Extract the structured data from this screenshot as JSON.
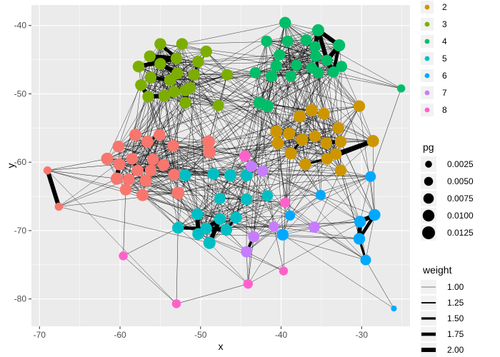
{
  "chart_data": {
    "type": "scatter",
    "subtype": "network-graph",
    "xlabel": "x",
    "ylabel": "y",
    "xlim": [
      -71,
      -24
    ],
    "ylim": [
      -84,
      -37
    ],
    "x_ticks": [
      -70,
      -60,
      -50,
      -40,
      -30
    ],
    "x_tick_labels": [
      "-70",
      "-60",
      "-50",
      "-40",
      "-30"
    ],
    "y_ticks": [
      -40,
      -50,
      -60,
      -70,
      -80
    ],
    "y_tick_labels": [
      "-40",
      "-50",
      "-60",
      "-70",
      "-80"
    ],
    "grid": true,
    "legend_position": "right",
    "color_legend": {
      "items": [
        {
          "label": "2",
          "color": "#CD9600"
        },
        {
          "label": "3",
          "color": "#7CAE00"
        },
        {
          "label": "4",
          "color": "#00BE67"
        },
        {
          "label": "5",
          "color": "#00BFC4"
        },
        {
          "label": "6",
          "color": "#00A9FF"
        },
        {
          "label": "7",
          "color": "#C77CFF"
        },
        {
          "label": "8",
          "color": "#FF61CC"
        }
      ]
    },
    "size_legend": {
      "title": "pg",
      "items": [
        {
          "label": "0.0025",
          "value": 0.0025
        },
        {
          "label": "0.0050",
          "value": 0.005
        },
        {
          "label": "0.0075",
          "value": 0.0075
        },
        {
          "label": "0.0100",
          "value": 0.01
        },
        {
          "label": "0.0125",
          "value": 0.0125
        }
      ]
    },
    "weight_legend": {
      "title": "weight",
      "items": [
        {
          "label": "1.00",
          "value": 1.0
        },
        {
          "label": "1.25",
          "value": 1.25
        },
        {
          "label": "1.50",
          "value": 1.5
        },
        {
          "label": "1.75",
          "value": 1.75
        },
        {
          "label": "2.00",
          "value": 2.0
        }
      ]
    },
    "groups": {
      "1": "#F8766D",
      "2": "#CD9600",
      "3": "#7CAE00",
      "4": "#00BE67",
      "5": "#00BFC4",
      "6": "#00A9FF",
      "7": "#C77CFF",
      "8": "#FF61CC"
    },
    "nodes": [
      {
        "id": "a1",
        "g": "1",
        "x": -69,
        "y": -61.2,
        "pg": 0.004
      },
      {
        "id": "a2",
        "g": "1",
        "x": -67.6,
        "y": -66.5,
        "pg": 0.004
      },
      {
        "id": "a3",
        "g": "1",
        "x": -61.6,
        "y": -59.5,
        "pg": 0.011
      },
      {
        "id": "a4",
        "g": "1",
        "x": -60.2,
        "y": -57.7,
        "pg": 0.01
      },
      {
        "id": "a5",
        "g": "1",
        "x": -58.1,
        "y": -56.0,
        "pg": 0.011
      },
      {
        "id": "a6",
        "g": "1",
        "x": -56.6,
        "y": -57.0,
        "pg": 0.011
      },
      {
        "id": "a7",
        "g": "1",
        "x": -55.1,
        "y": -56.0,
        "pg": 0.01
      },
      {
        "id": "a8",
        "g": "1",
        "x": -53.4,
        "y": -57.6,
        "pg": 0.01
      },
      {
        "id": "a9",
        "g": "1",
        "x": -58.5,
        "y": -59.5,
        "pg": 0.01
      },
      {
        "id": "a10",
        "g": "1",
        "x": -55.9,
        "y": -59.6,
        "pg": 0.01
      },
      {
        "id": "a11",
        "g": "1",
        "x": -54.6,
        "y": -60.4,
        "pg": 0.01
      },
      {
        "id": "a12",
        "g": "1",
        "x": -60.1,
        "y": -60.3,
        "pg": 0.011
      },
      {
        "id": "a13",
        "g": "1",
        "x": -57.8,
        "y": -61.2,
        "pg": 0.01
      },
      {
        "id": "a14",
        "g": "1",
        "x": -56.2,
        "y": -61.2,
        "pg": 0.01
      },
      {
        "id": "a15",
        "g": "1",
        "x": -60.4,
        "y": -62.4,
        "pg": 0.011
      },
      {
        "id": "a16",
        "g": "1",
        "x": -58.9,
        "y": -62.5,
        "pg": 0.01
      },
      {
        "id": "a17",
        "g": "1",
        "x": -56.8,
        "y": -62.7,
        "pg": 0.011
      },
      {
        "id": "a18",
        "g": "1",
        "x": -53.3,
        "y": -61.8,
        "pg": 0.01
      },
      {
        "id": "a19",
        "g": "1",
        "x": -59.3,
        "y": -64.0,
        "pg": 0.01
      },
      {
        "id": "a20",
        "g": "1",
        "x": -57.2,
        "y": -64.8,
        "pg": 0.011
      },
      {
        "id": "a21",
        "g": "1",
        "x": -52.8,
        "y": -64.5,
        "pg": 0.012
      },
      {
        "id": "a22",
        "g": "1",
        "x": -49.0,
        "y": -57.0,
        "pg": 0.012
      },
      {
        "id": "a23",
        "g": "1",
        "x": -48.9,
        "y": -58.5,
        "pg": 0.012
      },
      {
        "id": "b1",
        "g": "2",
        "x": -40.6,
        "y": -55.5,
        "pg": 0.011
      },
      {
        "id": "b2",
        "g": "2",
        "x": -39.0,
        "y": -55.8,
        "pg": 0.011
      },
      {
        "id": "b3",
        "g": "2",
        "x": -37.7,
        "y": -53.3,
        "pg": 0.011
      },
      {
        "id": "b4",
        "g": "2",
        "x": -36.2,
        "y": -52.4,
        "pg": 0.011
      },
      {
        "id": "b5",
        "g": "2",
        "x": -34.7,
        "y": -52.9,
        "pg": 0.01
      },
      {
        "id": "b6",
        "g": "2",
        "x": -32.9,
        "y": -55.0,
        "pg": 0.01
      },
      {
        "id": "b7",
        "g": "2",
        "x": -30.3,
        "y": -51.8,
        "pg": 0.01
      },
      {
        "id": "b8",
        "g": "2",
        "x": -40.4,
        "y": -57.2,
        "pg": 0.011
      },
      {
        "id": "b9",
        "g": "2",
        "x": -37.4,
        "y": -56.7,
        "pg": 0.011
      },
      {
        "id": "b10",
        "g": "2",
        "x": -35.8,
        "y": -56.2,
        "pg": 0.01
      },
      {
        "id": "b11",
        "g": "2",
        "x": -34.4,
        "y": -57.2,
        "pg": 0.01
      },
      {
        "id": "b12",
        "g": "2",
        "x": -32.6,
        "y": -57.0,
        "pg": 0.01
      },
      {
        "id": "b13",
        "g": "2",
        "x": -28.6,
        "y": -56.9,
        "pg": 0.011
      },
      {
        "id": "b14",
        "g": "2",
        "x": -38.8,
        "y": -58.7,
        "pg": 0.011
      },
      {
        "id": "b15",
        "g": "2",
        "x": -34.3,
        "y": -59.5,
        "pg": 0.01
      },
      {
        "id": "b16",
        "g": "2",
        "x": -33.2,
        "y": -58.8,
        "pg": 0.01
      },
      {
        "id": "b17",
        "g": "2",
        "x": -37.0,
        "y": -60.3,
        "pg": 0.01
      },
      {
        "id": "b18",
        "g": "2",
        "x": -32.6,
        "y": -61.2,
        "pg": 0.01
      },
      {
        "id": "c1",
        "g": "3",
        "x": -55.0,
        "y": -42.7,
        "pg": 0.01
      },
      {
        "id": "c2",
        "g": "3",
        "x": -52.3,
        "y": -42.7,
        "pg": 0.01
      },
      {
        "id": "c3",
        "g": "3",
        "x": -56.3,
        "y": -44.5,
        "pg": 0.01
      },
      {
        "id": "c4",
        "g": "3",
        "x": -53.0,
        "y": -44.8,
        "pg": 0.01
      },
      {
        "id": "c5",
        "g": "3",
        "x": -49.3,
        "y": -43.8,
        "pg": 0.01
      },
      {
        "id": "c6",
        "g": "3",
        "x": -57.7,
        "y": -46.0,
        "pg": 0.01
      },
      {
        "id": "c7",
        "g": "3",
        "x": -55.0,
        "y": -45.6,
        "pg": 0.01
      },
      {
        "id": "c8",
        "g": "3",
        "x": -50.3,
        "y": -45.3,
        "pg": 0.01
      },
      {
        "id": "c9",
        "g": "3",
        "x": -52.9,
        "y": -47.0,
        "pg": 0.01
      },
      {
        "id": "c10",
        "g": "3",
        "x": -50.8,
        "y": -47.2,
        "pg": 0.01
      },
      {
        "id": "c11",
        "g": "3",
        "x": -46.7,
        "y": -47.2,
        "pg": 0.009
      },
      {
        "id": "c12",
        "g": "3",
        "x": -56.2,
        "y": -47.6,
        "pg": 0.01
      },
      {
        "id": "c13",
        "g": "3",
        "x": -53.8,
        "y": -48.0,
        "pg": 0.01
      },
      {
        "id": "c14",
        "g": "3",
        "x": -57.4,
        "y": -48.7,
        "pg": 0.01
      },
      {
        "id": "c15",
        "g": "3",
        "x": -53.3,
        "y": -49.7,
        "pg": 0.01
      },
      {
        "id": "c16",
        "g": "3",
        "x": -51.9,
        "y": -49.5,
        "pg": 0.01
      },
      {
        "id": "c17",
        "g": "3",
        "x": -51.3,
        "y": -49.1,
        "pg": 0.009
      },
      {
        "id": "c18",
        "g": "3",
        "x": -56.5,
        "y": -50.4,
        "pg": 0.01
      },
      {
        "id": "c19",
        "g": "3",
        "x": -54.5,
        "y": -50.3,
        "pg": 0.01
      },
      {
        "id": "c20",
        "g": "3",
        "x": -51.9,
        "y": -51.3,
        "pg": 0.01
      },
      {
        "id": "c21",
        "g": "3",
        "x": -47.8,
        "y": -51.7,
        "pg": 0.009
      },
      {
        "id": "d1",
        "g": "4",
        "x": -39.5,
        "y": -39.6,
        "pg": 0.01
      },
      {
        "id": "d2",
        "g": "4",
        "x": -41.8,
        "y": -42.3,
        "pg": 0.009
      },
      {
        "id": "d3",
        "g": "4",
        "x": -39.2,
        "y": -42.3,
        "pg": 0.009
      },
      {
        "id": "d4",
        "g": "4",
        "x": -35.4,
        "y": -40.7,
        "pg": 0.011
      },
      {
        "id": "d5",
        "g": "4",
        "x": -36.9,
        "y": -42.1,
        "pg": 0.009
      },
      {
        "id": "d6",
        "g": "4",
        "x": -32.8,
        "y": -42.9,
        "pg": 0.011
      },
      {
        "id": "d7",
        "g": "4",
        "x": -35.8,
        "y": -43.1,
        "pg": 0.009
      },
      {
        "id": "d8",
        "g": "4",
        "x": -40.2,
        "y": -44.3,
        "pg": 0.009
      },
      {
        "id": "d9",
        "g": "4",
        "x": -35.7,
        "y": -44.5,
        "pg": 0.009
      },
      {
        "id": "d10",
        "g": "4",
        "x": -34.3,
        "y": -45.1,
        "pg": 0.009
      },
      {
        "id": "d11",
        "g": "4",
        "x": -40.6,
        "y": -45.9,
        "pg": 0.01
      },
      {
        "id": "d12",
        "g": "4",
        "x": -38.1,
        "y": -45.8,
        "pg": 0.009
      },
      {
        "id": "d13",
        "g": "4",
        "x": -36.2,
        "y": -46.2,
        "pg": 0.009
      },
      {
        "id": "d14",
        "g": "4",
        "x": -32.5,
        "y": -46.0,
        "pg": 0.009
      },
      {
        "id": "d15",
        "g": "4",
        "x": -43.2,
        "y": -46.9,
        "pg": 0.009
      },
      {
        "id": "d16",
        "g": "4",
        "x": -41.2,
        "y": -47.4,
        "pg": 0.01
      },
      {
        "id": "d17",
        "g": "4",
        "x": -38.8,
        "y": -47.4,
        "pg": 0.009
      },
      {
        "id": "d18",
        "g": "4",
        "x": -35.4,
        "y": -46.9,
        "pg": 0.009
      },
      {
        "id": "d19",
        "g": "4",
        "x": -33.5,
        "y": -46.8,
        "pg": 0.009
      },
      {
        "id": "d20",
        "g": "4",
        "x": -25.1,
        "y": -49.2,
        "pg": 0.004
      },
      {
        "id": "d21",
        "g": "4",
        "x": -42.7,
        "y": -51.3,
        "pg": 0.011
      },
      {
        "id": "d22",
        "g": "4",
        "x": -41.7,
        "y": -51.8,
        "pg": 0.011
      },
      {
        "id": "e1",
        "g": "5",
        "x": -51.9,
        "y": -61.9,
        "pg": 0.01
      },
      {
        "id": "e2",
        "g": "5",
        "x": -48.4,
        "y": -61.7,
        "pg": 0.01
      },
      {
        "id": "e3",
        "g": "5",
        "x": -46.3,
        "y": -61.9,
        "pg": 0.011
      },
      {
        "id": "e4",
        "g": "5",
        "x": -44.3,
        "y": -61.9,
        "pg": 0.011
      },
      {
        "id": "e5",
        "g": "5",
        "x": -47.6,
        "y": -65.3,
        "pg": 0.009
      },
      {
        "id": "e6",
        "g": "5",
        "x": -44.3,
        "y": -65.4,
        "pg": 0.01
      },
      {
        "id": "e7",
        "g": "5",
        "x": -41.7,
        "y": -64.9,
        "pg": 0.009
      },
      {
        "id": "e8",
        "g": "5",
        "x": -50.4,
        "y": -67.6,
        "pg": 0.01
      },
      {
        "id": "e9",
        "g": "5",
        "x": -47.6,
        "y": -68.3,
        "pg": 0.01
      },
      {
        "id": "e10",
        "g": "5",
        "x": -45.6,
        "y": -68.1,
        "pg": 0.01
      },
      {
        "id": "e11",
        "g": "5",
        "x": -52.8,
        "y": -69.6,
        "pg": 0.01
      },
      {
        "id": "e12",
        "g": "5",
        "x": -49.3,
        "y": -69.7,
        "pg": 0.01
      },
      {
        "id": "e13",
        "g": "5",
        "x": -46.8,
        "y": -69.9,
        "pg": 0.01
      },
      {
        "id": "e14",
        "g": "5",
        "x": -50.3,
        "y": -70.5,
        "pg": 0.01
      },
      {
        "id": "e15",
        "g": "5",
        "x": -48.9,
        "y": -71.8,
        "pg": 0.011
      },
      {
        "id": "f1",
        "g": "6",
        "x": -28.9,
        "y": -62.1,
        "pg": 0.008
      },
      {
        "id": "f2",
        "g": "6",
        "x": -35.1,
        "y": -64.8,
        "pg": 0.007
      },
      {
        "id": "f3",
        "g": "6",
        "x": -38.9,
        "y": -67.8,
        "pg": 0.007
      },
      {
        "id": "f4",
        "g": "6",
        "x": -30.2,
        "y": -68.7,
        "pg": 0.01
      },
      {
        "id": "f5",
        "g": "6",
        "x": -28.4,
        "y": -67.7,
        "pg": 0.01
      },
      {
        "id": "f6",
        "g": "6",
        "x": -39.8,
        "y": -70.6,
        "pg": 0.01
      },
      {
        "id": "f7",
        "g": "6",
        "x": -30.3,
        "y": -71.2,
        "pg": 0.01
      },
      {
        "id": "f8",
        "g": "6",
        "x": -29.5,
        "y": -74.3,
        "pg": 0.008
      },
      {
        "id": "f9",
        "g": "6",
        "x": -26.0,
        "y": -81.4,
        "pg": 0.0015
      },
      {
        "id": "g1",
        "g": "7",
        "x": -43.7,
        "y": -60.6,
        "pg": 0.009
      },
      {
        "id": "g2",
        "g": "7",
        "x": -42.3,
        "y": -61.3,
        "pg": 0.009
      },
      {
        "id": "g3",
        "g": "7",
        "x": -40.9,
        "y": -69.4,
        "pg": 0.007
      },
      {
        "id": "g4",
        "g": "7",
        "x": -35.9,
        "y": -69.5,
        "pg": 0.009
      },
      {
        "id": "g5",
        "g": "7",
        "x": -43.4,
        "y": -70.9,
        "pg": 0.009
      },
      {
        "id": "g6",
        "g": "7",
        "x": -44.3,
        "y": -73.1,
        "pg": 0.009
      },
      {
        "id": "h1",
        "g": "8",
        "x": -44.5,
        "y": -59.1,
        "pg": 0.009
      },
      {
        "id": "h2",
        "g": "8",
        "x": -39.5,
        "y": -65.9,
        "pg": 0.007
      },
      {
        "id": "h3",
        "g": "8",
        "x": -59.6,
        "y": -73.7,
        "pg": 0.005
      },
      {
        "id": "h4",
        "g": "8",
        "x": -39.7,
        "y": -75.9,
        "pg": 0.005
      },
      {
        "id": "h5",
        "g": "8",
        "x": -44.1,
        "y": -77.8,
        "pg": 0.006
      },
      {
        "id": "h6",
        "g": "8",
        "x": -53.0,
        "y": -80.7,
        "pg": 0.005
      }
    ],
    "strong_edges": [
      {
        "s": "a1",
        "t": "a2",
        "w": 2.0
      },
      {
        "s": "c3",
        "t": "c4",
        "w": 2.0
      },
      {
        "s": "c1",
        "t": "c4",
        "w": 1.75
      },
      {
        "s": "c7",
        "t": "c9",
        "w": 2.0
      },
      {
        "s": "c6",
        "t": "c4",
        "w": 2.0
      },
      {
        "s": "c9",
        "t": "c13",
        "w": 1.75
      },
      {
        "s": "c12",
        "t": "c13",
        "w": 1.75
      },
      {
        "s": "c14",
        "t": "c18",
        "w": 2.0
      },
      {
        "s": "c18",
        "t": "c19",
        "w": 2.0
      },
      {
        "s": "c16",
        "t": "c20",
        "w": 2.0
      },
      {
        "s": "c3",
        "t": "c9",
        "w": 1.5
      },
      {
        "s": "c10",
        "t": "c8",
        "w": 1.5
      },
      {
        "s": "d4",
        "t": "d6",
        "w": 2.0
      },
      {
        "s": "d4",
        "t": "d7",
        "w": 2.0
      },
      {
        "s": "d4",
        "t": "d10",
        "w": 2.0
      },
      {
        "s": "d6",
        "t": "d10",
        "w": 2.0
      },
      {
        "s": "d10",
        "t": "d19",
        "w": 2.0
      },
      {
        "s": "d6",
        "t": "d19",
        "w": 1.75
      },
      {
        "s": "d7",
        "t": "d9",
        "w": 1.5
      },
      {
        "s": "d9",
        "t": "d18",
        "w": 1.5
      },
      {
        "s": "b15",
        "t": "b13",
        "w": 2.0
      },
      {
        "s": "b16",
        "t": "b13",
        "w": 2.0
      },
      {
        "s": "b11",
        "t": "b12",
        "w": 1.75
      },
      {
        "s": "b14",
        "t": "b9",
        "w": 1.5
      },
      {
        "s": "b15",
        "t": "b16",
        "w": 1.75
      },
      {
        "s": "b17",
        "t": "b15",
        "w": 1.5
      },
      {
        "s": "a12",
        "t": "a15",
        "w": 2.0
      },
      {
        "s": "a9",
        "t": "a13",
        "w": 1.75
      },
      {
        "s": "a13",
        "t": "a14",
        "w": 1.5
      },
      {
        "s": "a10",
        "t": "a11",
        "w": 1.5
      },
      {
        "s": "a7",
        "t": "a6",
        "w": 1.5
      },
      {
        "s": "e11",
        "t": "e12",
        "w": 1.75
      },
      {
        "s": "e12",
        "t": "e13",
        "w": 2.0
      },
      {
        "s": "e9",
        "t": "e12",
        "w": 2.0
      },
      {
        "s": "e9",
        "t": "e15",
        "w": 2.0
      },
      {
        "s": "e8",
        "t": "e14",
        "w": 2.0
      },
      {
        "s": "e10",
        "t": "e13",
        "w": 1.5
      },
      {
        "s": "f4",
        "t": "f5",
        "w": 2.0
      },
      {
        "s": "f4",
        "t": "f7",
        "w": 2.0
      },
      {
        "s": "f5",
        "t": "f7",
        "w": 1.75
      },
      {
        "s": "f7",
        "t": "f8",
        "w": 1.5
      },
      {
        "s": "g5",
        "t": "g6",
        "w": 1.5
      }
    ]
  }
}
